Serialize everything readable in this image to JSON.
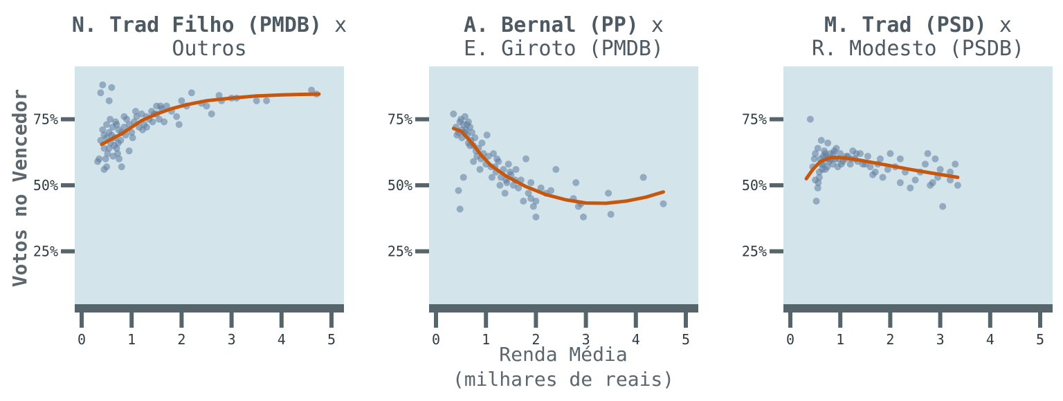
{
  "ylabel": "Votos no Vencedor",
  "xlabel_line1": "Renda Média",
  "xlabel_line2": "(milhares de reais)",
  "colors": {
    "panel_bg": "#d3e4eb",
    "points": "#5f7b9e",
    "trend": "#c8570e",
    "axis": "#56646c",
    "text": "#4e5a63"
  },
  "chart_data": [
    {
      "type": "scatter",
      "title_bold": "N. Trad Filho (PMDB)",
      "title_rest": "x",
      "subtitle": "Outros",
      "xlim": [
        0,
        5
      ],
      "ylim": [
        0.05,
        0.95
      ],
      "x_ticks": [
        "0",
        "1",
        "2",
        "3",
        "4",
        "5"
      ],
      "y_ticks": [
        "25%",
        "50%",
        "75%"
      ],
      "trend": [
        [
          0.4,
          0.655
        ],
        [
          0.6,
          0.675
        ],
        [
          0.8,
          0.695
        ],
        [
          1.0,
          0.72
        ],
        [
          1.2,
          0.745
        ],
        [
          1.5,
          0.77
        ],
        [
          1.8,
          0.79
        ],
        [
          2.1,
          0.805
        ],
        [
          2.5,
          0.82
        ],
        [
          3.0,
          0.83
        ],
        [
          3.5,
          0.838
        ],
        [
          4.0,
          0.842
        ],
        [
          4.4,
          0.844
        ],
        [
          4.75,
          0.845
        ]
      ],
      "points": [
        [
          0.35,
          0.6
        ],
        [
          0.38,
          0.85
        ],
        [
          0.42,
          0.88
        ],
        [
          0.45,
          0.56
        ],
        [
          0.5,
          0.57
        ],
        [
          0.55,
          0.82
        ],
        [
          0.6,
          0.87
        ],
        [
          0.62,
          0.72
        ],
        [
          0.5,
          0.68
        ],
        [
          0.55,
          0.7
        ],
        [
          0.65,
          0.65
        ],
        [
          0.7,
          0.73
        ],
        [
          0.72,
          0.62
        ],
        [
          0.75,
          0.6
        ],
        [
          0.8,
          0.7
        ],
        [
          0.45,
          0.64
        ],
        [
          0.48,
          0.6
        ],
        [
          0.52,
          0.62
        ],
        [
          0.58,
          0.66
        ],
        [
          0.66,
          0.68
        ],
        [
          0.7,
          0.64
        ],
        [
          0.74,
          0.71
        ],
        [
          0.78,
          0.67
        ],
        [
          0.85,
          0.72
        ],
        [
          0.9,
          0.75
        ],
        [
          0.95,
          0.73
        ],
        [
          1.0,
          0.7
        ],
        [
          1.05,
          0.74
        ],
        [
          1.1,
          0.76
        ],
        [
          1.15,
          0.72
        ],
        [
          1.2,
          0.77
        ],
        [
          1.25,
          0.73
        ],
        [
          1.3,
          0.76
        ],
        [
          1.35,
          0.75
        ],
        [
          1.4,
          0.78
        ],
        [
          1.45,
          0.77
        ],
        [
          1.5,
          0.8
        ],
        [
          1.55,
          0.75
        ],
        [
          1.6,
          0.79
        ],
        [
          1.65,
          0.74
        ],
        [
          1.7,
          0.8
        ],
        [
          1.8,
          0.78
        ],
        [
          1.9,
          0.76
        ],
        [
          1.95,
          0.73
        ],
        [
          2.0,
          0.82
        ],
        [
          2.1,
          0.8
        ],
        [
          2.2,
          0.85
        ],
        [
          2.4,
          0.81
        ],
        [
          2.5,
          0.8
        ],
        [
          2.6,
          0.77
        ],
        [
          2.75,
          0.84
        ],
        [
          2.8,
          0.82
        ],
        [
          3.0,
          0.83
        ],
        [
          3.1,
          0.83
        ],
        [
          3.5,
          0.82
        ],
        [
          3.7,
          0.82
        ],
        [
          4.6,
          0.86
        ],
        [
          4.7,
          0.845
        ],
        [
          0.38,
          0.67
        ],
        [
          0.42,
          0.71
        ],
        [
          0.55,
          0.64
        ],
        [
          0.6,
          0.69
        ],
        [
          0.68,
          0.74
        ],
        [
          0.8,
          0.57
        ],
        [
          0.85,
          0.76
        ],
        [
          0.88,
          0.69
        ],
        [
          0.95,
          0.63
        ],
        [
          1.02,
          0.68
        ],
        [
          1.08,
          0.78
        ],
        [
          1.22,
          0.71
        ],
        [
          1.3,
          0.72
        ],
        [
          1.42,
          0.74
        ],
        [
          1.5,
          0.77
        ],
        [
          1.58,
          0.8
        ],
        [
          0.5,
          0.73
        ],
        [
          0.63,
          0.61
        ],
        [
          0.73,
          0.66
        ],
        [
          0.32,
          0.59
        ],
        [
          0.45,
          0.69
        ],
        [
          0.57,
          0.75
        ]
      ]
    },
    {
      "type": "scatter",
      "title_bold": "A. Bernal (PP)",
      "title_rest": "x",
      "subtitle": "E. Giroto (PMDB)",
      "xlim": [
        0,
        5
      ],
      "ylim": [
        0.05,
        0.95
      ],
      "x_ticks": [
        "0",
        "1",
        "2",
        "3",
        "4",
        "5"
      ],
      "y_ticks": [
        "25%",
        "50%",
        "75%"
      ],
      "trend": [
        [
          0.35,
          0.715
        ],
        [
          0.5,
          0.705
        ],
        [
          0.7,
          0.665
        ],
        [
          0.9,
          0.615
        ],
        [
          1.1,
          0.575
        ],
        [
          1.4,
          0.535
        ],
        [
          1.8,
          0.495
        ],
        [
          2.2,
          0.465
        ],
        [
          2.6,
          0.445
        ],
        [
          3.0,
          0.433
        ],
        [
          3.4,
          0.432
        ],
        [
          3.8,
          0.44
        ],
        [
          4.2,
          0.455
        ],
        [
          4.55,
          0.475
        ]
      ],
      "points": [
        [
          0.35,
          0.77
        ],
        [
          0.4,
          0.72
        ],
        [
          0.45,
          0.7
        ],
        [
          0.48,
          0.74
        ],
        [
          0.5,
          0.75
        ],
        [
          0.52,
          0.68
        ],
        [
          0.55,
          0.73
        ],
        [
          0.58,
          0.76
        ],
        [
          0.6,
          0.71
        ],
        [
          0.62,
          0.69
        ],
        [
          0.65,
          0.74
        ],
        [
          0.68,
          0.72
        ],
        [
          0.7,
          0.67
        ],
        [
          0.72,
          0.7
        ],
        [
          0.75,
          0.65
        ],
        [
          0.78,
          0.68
        ],
        [
          0.8,
          0.63
        ],
        [
          0.85,
          0.64
        ],
        [
          0.9,
          0.6
        ],
        [
          0.95,
          0.62
        ],
        [
          1.0,
          0.58
        ],
        [
          1.05,
          0.61
        ],
        [
          1.1,
          0.57
        ],
        [
          1.15,
          0.62
        ],
        [
          1.2,
          0.55
        ],
        [
          1.25,
          0.59
        ],
        [
          1.3,
          0.53
        ],
        [
          1.35,
          0.56
        ],
        [
          1.4,
          0.52
        ],
        [
          1.45,
          0.58
        ],
        [
          1.5,
          0.54
        ],
        [
          1.55,
          0.5
        ],
        [
          1.6,
          0.56
        ],
        [
          1.65,
          0.49
        ],
        [
          1.7,
          0.52
        ],
        [
          1.8,
          0.6
        ],
        [
          1.85,
          0.47
        ],
        [
          1.9,
          0.45
        ],
        [
          1.95,
          0.42
        ],
        [
          2.0,
          0.38
        ],
        [
          2.1,
          0.49
        ],
        [
          2.2,
          0.47
        ],
        [
          2.4,
          0.56
        ],
        [
          2.8,
          0.51
        ],
        [
          2.85,
          0.42
        ],
        [
          2.9,
          0.43
        ],
        [
          2.95,
          0.38
        ],
        [
          3.45,
          0.47
        ],
        [
          3.5,
          0.39
        ],
        [
          4.15,
          0.53
        ],
        [
          4.55,
          0.43
        ],
        [
          0.45,
          0.48
        ],
        [
          0.48,
          0.41
        ],
        [
          0.55,
          0.53
        ],
        [
          0.65,
          0.66
        ],
        [
          0.75,
          0.59
        ],
        [
          0.88,
          0.56
        ],
        [
          1.02,
          0.69
        ],
        [
          1.12,
          0.53
        ],
        [
          1.22,
          0.6
        ],
        [
          1.28,
          0.5
        ],
        [
          1.38,
          0.47
        ],
        [
          1.48,
          0.55
        ],
        [
          1.58,
          0.52
        ],
        [
          1.75,
          0.44
        ],
        [
          1.9,
          0.51
        ],
        [
          0.42,
          0.69
        ],
        [
          0.52,
          0.71
        ],
        [
          0.58,
          0.7
        ],
        [
          0.62,
          0.73
        ],
        [
          0.68,
          0.65
        ],
        [
          0.82,
          0.61
        ],
        [
          0.92,
          0.66
        ],
        [
          1.18,
          0.57
        ],
        [
          1.42,
          0.51
        ],
        [
          2.0,
          0.44
        ],
        [
          2.3,
          0.48
        ],
        [
          2.75,
          0.45
        ]
      ]
    },
    {
      "type": "scatter",
      "title_bold": "M. Trad (PSD)",
      "title_rest": "x",
      "subtitle": "R. Modesto (PSDB)",
      "xlim": [
        0,
        5
      ],
      "ylim": [
        0.05,
        0.95
      ],
      "x_ticks": [
        "0",
        "1",
        "2",
        "3",
        "4",
        "5"
      ],
      "y_ticks": [
        "25%",
        "50%",
        "75%"
      ],
      "trend": [
        [
          0.32,
          0.525
        ],
        [
          0.45,
          0.56
        ],
        [
          0.6,
          0.59
        ],
        [
          0.8,
          0.605
        ],
        [
          1.0,
          0.605
        ],
        [
          1.3,
          0.598
        ],
        [
          1.6,
          0.588
        ],
        [
          2.0,
          0.574
        ],
        [
          2.4,
          0.56
        ],
        [
          2.8,
          0.547
        ],
        [
          3.1,
          0.538
        ],
        [
          3.35,
          0.53
        ]
      ],
      "points": [
        [
          0.4,
          0.75
        ],
        [
          0.45,
          0.57
        ],
        [
          0.5,
          0.52
        ],
        [
          0.52,
          0.44
        ],
        [
          0.55,
          0.49
        ],
        [
          0.58,
          0.55
        ],
        [
          0.6,
          0.6
        ],
        [
          0.62,
          0.67
        ],
        [
          0.65,
          0.58
        ],
        [
          0.68,
          0.63
        ],
        [
          0.7,
          0.56
        ],
        [
          0.72,
          0.61
        ],
        [
          0.75,
          0.66
        ],
        [
          0.78,
          0.59
        ],
        [
          0.8,
          0.62
        ],
        [
          0.85,
          0.58
        ],
        [
          0.88,
          0.63
        ],
        [
          0.9,
          0.6
        ],
        [
          0.95,
          0.57
        ],
        [
          1.0,
          0.62
        ],
        [
          1.05,
          0.59
        ],
        [
          1.1,
          0.6
        ],
        [
          1.15,
          0.61
        ],
        [
          1.2,
          0.58
        ],
        [
          1.25,
          0.63
        ],
        [
          1.3,
          0.6
        ],
        [
          1.35,
          0.59
        ],
        [
          1.4,
          0.62
        ],
        [
          1.5,
          0.58
        ],
        [
          1.6,
          0.57
        ],
        [
          1.7,
          0.55
        ],
        [
          1.8,
          0.6
        ],
        [
          1.85,
          0.53
        ],
        [
          1.95,
          0.56
        ],
        [
          2.1,
          0.57
        ],
        [
          2.2,
          0.51
        ],
        [
          2.3,
          0.55
        ],
        [
          2.4,
          0.49
        ],
        [
          2.5,
          0.52
        ],
        [
          2.6,
          0.55
        ],
        [
          2.7,
          0.58
        ],
        [
          2.75,
          0.62
        ],
        [
          2.8,
          0.5
        ],
        [
          2.85,
          0.51
        ],
        [
          2.95,
          0.53
        ],
        [
          3.0,
          0.56
        ],
        [
          3.05,
          0.42
        ],
        [
          3.2,
          0.52
        ],
        [
          3.3,
          0.58
        ],
        [
          3.35,
          0.5
        ],
        [
          0.48,
          0.6
        ],
        [
          0.55,
          0.64
        ],
        [
          0.58,
          0.53
        ],
        [
          0.62,
          0.58
        ],
        [
          0.66,
          0.61
        ],
        [
          0.7,
          0.62
        ],
        [
          0.74,
          0.57
        ],
        [
          0.82,
          0.6
        ],
        [
          0.92,
          0.64
        ],
        [
          1.02,
          0.58
        ],
        [
          1.12,
          0.61
        ],
        [
          1.22,
          0.6
        ],
        [
          1.32,
          0.62
        ],
        [
          1.45,
          0.58
        ],
        [
          1.55,
          0.61
        ],
        [
          1.65,
          0.54
        ],
        [
          1.75,
          0.58
        ],
        [
          0.5,
          0.62
        ],
        [
          0.56,
          0.51
        ],
        [
          0.64,
          0.56
        ],
        [
          0.76,
          0.6
        ],
        [
          0.86,
          0.62
        ],
        [
          0.96,
          0.6
        ],
        [
          2.0,
          0.62
        ],
        [
          2.2,
          0.6
        ],
        [
          2.9,
          0.6
        ],
        [
          3.2,
          0.55
        ]
      ]
    }
  ]
}
